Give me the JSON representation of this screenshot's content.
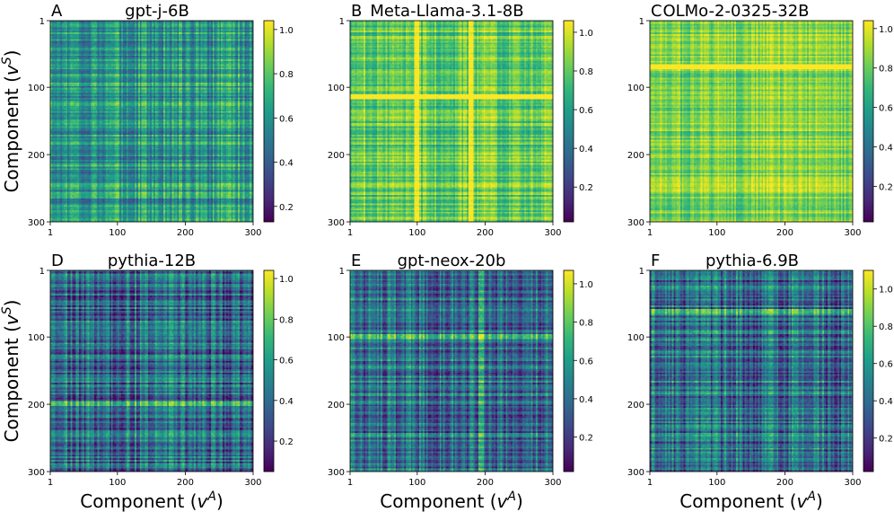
{
  "chart_data": [
    {
      "type": "heatmap",
      "panel": "A",
      "title": "gpt-j-6B",
      "ylabel": "Component (v^S)",
      "xlabel": "",
      "x_ticks": [
        "1",
        "100",
        "200",
        "300"
      ],
      "y_ticks": [
        "1",
        "100",
        "200",
        "300"
      ],
      "xlim": [
        1,
        300
      ],
      "ylim": [
        1,
        300
      ],
      "colorbar_ticks": [
        0.2,
        0.4,
        0.6,
        0.8,
        1.0
      ],
      "colorbar_range": [
        0.13,
        1.04
      ],
      "value_mean": 0.62,
      "value_spread": 0.15,
      "row_bands": [],
      "col_bands": []
    },
    {
      "type": "heatmap",
      "panel": "B",
      "title": "Meta-Llama-3.1-8B",
      "ylabel": "",
      "xlabel": "",
      "x_ticks": [
        "1",
        "100",
        "200",
        "300"
      ],
      "y_ticks": [
        "1",
        "100",
        "200",
        "300"
      ],
      "xlim": [
        1,
        300
      ],
      "ylim": [
        1,
        300
      ],
      "colorbar_ticks": [
        0.2,
        0.4,
        0.6,
        0.8,
        1.0
      ],
      "colorbar_range": [
        0.02,
        1.06
      ],
      "value_mean": 0.82,
      "value_spread": 0.13,
      "row_bands": [
        113
      ],
      "col_bands": [
        100,
        180
      ]
    },
    {
      "type": "heatmap",
      "panel": "C",
      "title": "OLMo-2-0325-32B",
      "ylabel": "",
      "xlabel": "",
      "x_ticks": [
        "1",
        "100",
        "200",
        "300"
      ],
      "y_ticks": [
        "1",
        "100",
        "200",
        "300"
      ],
      "xlim": [
        1,
        300
      ],
      "ylim": [
        1,
        300
      ],
      "colorbar_ticks": [
        0.2,
        0.4,
        0.6,
        0.8,
        1.0
      ],
      "colorbar_range": [
        0.02,
        1.04
      ],
      "value_mean": 0.85,
      "value_spread": 0.11,
      "row_bands": [
        70
      ],
      "col_bands": []
    },
    {
      "type": "heatmap",
      "panel": "D",
      "title": "pythia-12B",
      "ylabel": "Component (v^S)",
      "xlabel": "Component (v^A)",
      "x_ticks": [
        "1",
        "100",
        "200",
        "300"
      ],
      "y_ticks": [
        "1",
        "100",
        "200",
        "300"
      ],
      "xlim": [
        1,
        300
      ],
      "ylim": [
        1,
        300
      ],
      "colorbar_ticks": [
        0.2,
        0.4,
        0.6,
        0.8,
        1.0
      ],
      "colorbar_range": [
        0.05,
        1.04
      ],
      "value_mean": 0.38,
      "value_spread": 0.2,
      "row_bands": [
        200
      ],
      "col_bands": []
    },
    {
      "type": "heatmap",
      "panel": "E",
      "title": "gpt-neox-20b",
      "ylabel": "",
      "xlabel": "Component (v^A)",
      "x_ticks": [
        "1",
        "100",
        "200",
        "300"
      ],
      "y_ticks": [
        "1",
        "100",
        "200",
        "300"
      ],
      "xlim": [
        1,
        300
      ],
      "ylim": [
        1,
        300
      ],
      "colorbar_ticks": [
        0.2,
        0.4,
        0.6,
        0.8,
        1.0
      ],
      "colorbar_range": [
        0.02,
        1.07
      ],
      "value_mean": 0.42,
      "value_spread": 0.2,
      "row_bands": [
        100
      ],
      "col_bands": [
        195
      ]
    },
    {
      "type": "heatmap",
      "panel": "F",
      "title": "pythia-6.9B",
      "ylabel": "",
      "xlabel": "Component (v^A)",
      "x_ticks": [
        "1",
        "100",
        "200",
        "300"
      ],
      "y_ticks": [
        "1",
        "100",
        "200",
        "300"
      ],
      "xlim": [
        1,
        300
      ],
      "ylim": [
        1,
        300
      ],
      "colorbar_ticks": [
        0.2,
        0.4,
        0.6,
        0.8,
        1.0
      ],
      "colorbar_range": [
        0.02,
        1.1
      ],
      "value_mean": 0.4,
      "value_spread": 0.22,
      "row_bands": [
        62
      ],
      "col_bands": []
    }
  ],
  "colormap": "viridis"
}
